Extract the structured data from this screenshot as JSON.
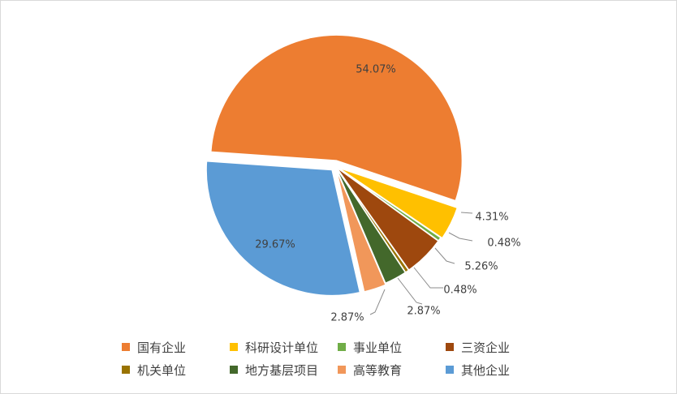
{
  "chart_data": {
    "type": "pie",
    "exploded": true,
    "legend_position": "bottom",
    "categories": [
      "国有企业",
      "科研设计单位",
      "事业单位",
      "三资企业",
      "机关单位",
      "地方基层项目",
      "高等教育",
      "其他企业"
    ],
    "values": [
      54.07,
      4.31,
      0.48,
      5.26,
      0.48,
      2.87,
      2.87,
      29.67
    ],
    "labels": [
      "54.07%",
      "4.31%",
      "0.48%",
      "5.26%",
      "0.48%",
      "2.87%",
      "2.87%",
      "29.67%"
    ],
    "colors": [
      "#ED7D31",
      "#FFC000",
      "#70AD47",
      "#9E480E",
      "#997300",
      "#43682B",
      "#F1975A",
      "#5B9BD5"
    ],
    "legend_order": [
      0,
      1,
      2,
      3,
      4,
      5,
      6,
      7
    ]
  }
}
